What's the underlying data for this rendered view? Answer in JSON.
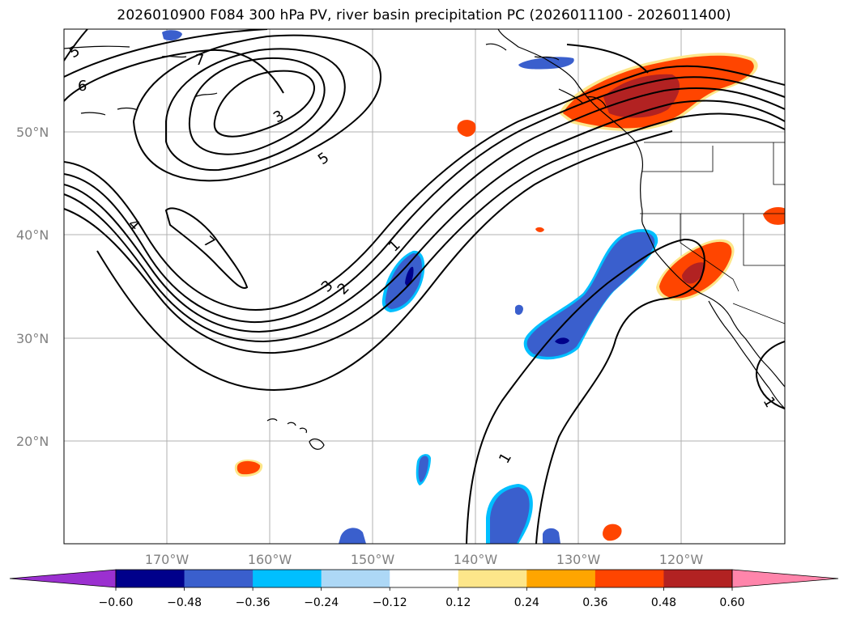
{
  "title": "2026010900 F084 300 hPa PV, river basin precipitation PC (2026011100 - 2026011400)",
  "lat_labels": [
    "50°N",
    "40°N",
    "30°N",
    "20°N"
  ],
  "lon_labels": [
    "170°W",
    "160°W",
    "150°W",
    "140°W",
    "130°W",
    "120°W"
  ],
  "contour_labels": [
    "5",
    "6",
    "3",
    "5",
    "7",
    "4",
    "7",
    "1",
    "3",
    "2",
    "1",
    "1"
  ],
  "colorbar": {
    "tick_labels": [
      "−0.60",
      "−0.48",
      "−0.36",
      "−0.24",
      "−0.12",
      "0.12",
      "0.24",
      "0.36",
      "0.48",
      "0.60"
    ],
    "under_color": "#9b30d0",
    "colors": [
      "#00008b",
      "#3a5fcd",
      "#00bfff",
      "#add8f6",
      "#ffffff",
      "#fde68a",
      "#ffa500",
      "#ff4500",
      "#b22222"
    ],
    "over_color": "#ff85ab"
  },
  "colors": {
    "positive_dark": "#b22222",
    "positive": "#ff4500",
    "positive_light": "#ffa500",
    "positive_faint": "#fde68a",
    "negative_dark": "#00008b",
    "negative": "#3a5fcd",
    "negative_light": "#00bfff"
  }
}
